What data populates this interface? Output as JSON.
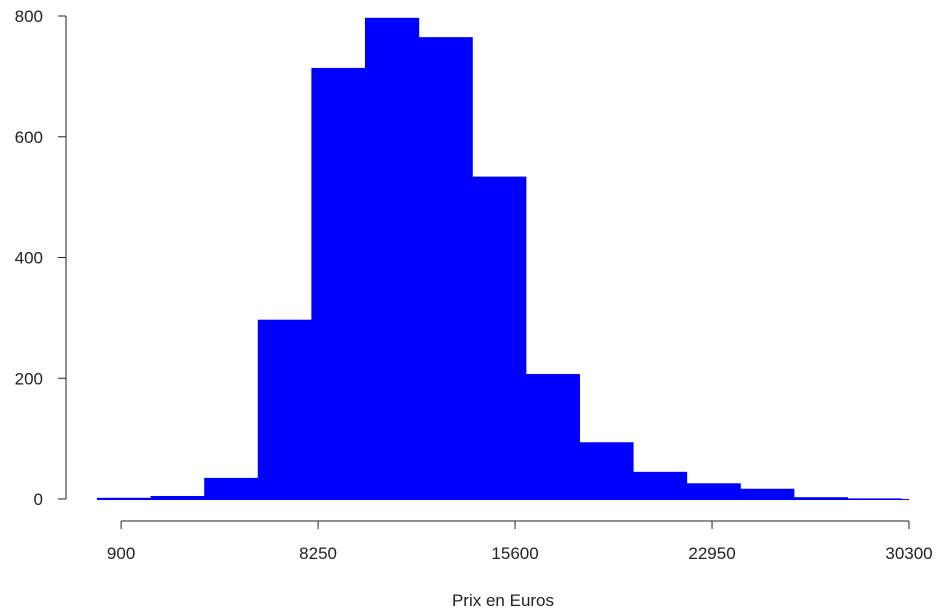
{
  "chart_data": {
    "type": "bar",
    "subtype": "histogram",
    "title": "",
    "xlabel": "Prix en Euros",
    "ylabel": "",
    "bin_edges": [
      0,
      2000,
      4000,
      6000,
      8000,
      10000,
      12000,
      14000,
      16000,
      18000,
      20000,
      22000,
      24000,
      26000,
      28000,
      30000
    ],
    "values": [
      2,
      5,
      35,
      297,
      714,
      797,
      765,
      534,
      207,
      94,
      45,
      26,
      17,
      3,
      1
    ],
    "bar_color": "#0000ff",
    "xlim": [
      0,
      30300
    ],
    "ylim": [
      0,
      800
    ],
    "x_ticks": [
      900,
      8250,
      15600,
      22950,
      30300
    ],
    "x_tick_labels": [
      "900",
      "8250",
      "15600",
      "22950",
      "30300"
    ],
    "y_ticks": [
      0,
      200,
      400,
      600,
      800
    ],
    "y_tick_labels": [
      "0",
      "200",
      "400",
      "600",
      "800"
    ],
    "grid": false
  }
}
